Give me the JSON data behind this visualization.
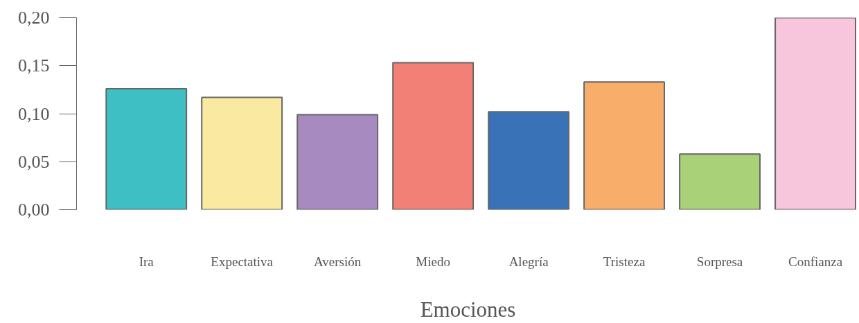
{
  "chart_data": {
    "type": "bar",
    "xlabel": "Emociones",
    "categories": [
      "Ira",
      "Expectativa",
      "Aversión",
      "Miedo",
      "Alegría",
      "Tristeza",
      "Sorpresa",
      "Confianza"
    ],
    "values": [
      0.126,
      0.117,
      0.099,
      0.153,
      0.102,
      0.133,
      0.058,
      0.2
    ],
    "colors": [
      "#3dbfc4",
      "#fae9a0",
      "#a68ac0",
      "#f38076",
      "#3a72b8",
      "#f8ad6a",
      "#a8d178",
      "#f7c5dc"
    ],
    "ylim": [
      0,
      0.2
    ],
    "yticks": [
      {
        "value": 0,
        "label": "0,00"
      },
      {
        "value": 0.05,
        "label": "0,05"
      },
      {
        "value": 0.1,
        "label": "0,10"
      },
      {
        "value": 0.15,
        "label": "0,15"
      },
      {
        "value": 0.2,
        "label": "0,20"
      }
    ],
    "grid": false
  }
}
